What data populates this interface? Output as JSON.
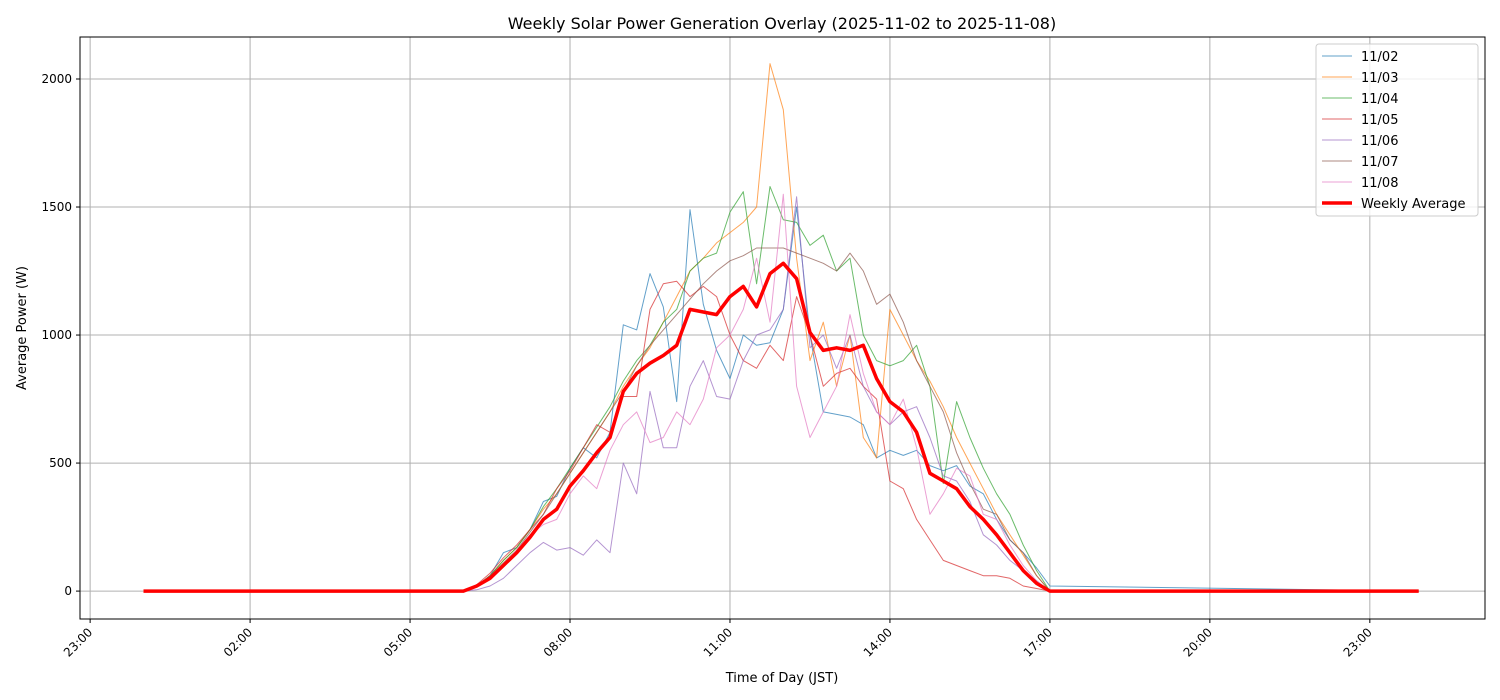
{
  "chart_data": {
    "type": "line",
    "title": "Weekly Solar Power Generation Overlay (2025-11-02 to 2025-11-08)",
    "xlabel": "Time of Day (JST)",
    "ylabel": "Average Power (W)",
    "grid": true,
    "legend_position": "top-right",
    "xlim_hours": [
      -1.19,
      25.16
    ],
    "ylim": [
      -109,
      2164
    ],
    "xticks_hours": [
      -1,
      2,
      5,
      8,
      11,
      14,
      17,
      20,
      23
    ],
    "xtick_labels": [
      "23:00",
      "02:00",
      "05:00",
      "08:00",
      "11:00",
      "14:00",
      "17:00",
      "20:00",
      "23:00"
    ],
    "yticks": [
      0,
      500,
      1000,
      1500,
      2000
    ],
    "ytick_labels": [
      "0",
      "500",
      "1000",
      "1500",
      "2000"
    ],
    "x": [
      "00:00",
      "06:00",
      "06:15",
      "06:30",
      "06:45",
      "07:00",
      "07:15",
      "07:30",
      "07:45",
      "08:00",
      "08:15",
      "08:30",
      "08:45",
      "09:00",
      "09:15",
      "09:30",
      "09:45",
      "10:00",
      "10:15",
      "10:30",
      "10:45",
      "11:00",
      "11:15",
      "11:30",
      "11:45",
      "12:00",
      "12:15",
      "12:30",
      "12:45",
      "13:00",
      "13:15",
      "13:30",
      "13:45",
      "14:00",
      "14:15",
      "14:30",
      "14:45",
      "15:00",
      "15:15",
      "15:30",
      "15:45",
      "16:00",
      "16:15",
      "16:30",
      "16:45",
      "17:00",
      "23:55"
    ],
    "series": [
      {
        "name": "11/02",
        "color": "#1f77b4",
        "values": [
          0,
          0,
          20,
          60,
          150,
          170,
          240,
          350,
          370,
          480,
          560,
          520,
          620,
          1040,
          1020,
          1240,
          1110,
          740,
          1490,
          1120,
          940,
          830,
          1000,
          960,
          970,
          1100,
          1500,
          1000,
          700,
          690,
          680,
          650,
          520,
          550,
          530,
          550,
          490,
          470,
          490,
          410,
          380,
          280,
          200,
          150,
          90,
          20,
          0
        ]
      },
      {
        "name": "11/03",
        "color": "#ff7f0e",
        "values": [
          0,
          0,
          20,
          60,
          120,
          170,
          240,
          320,
          380,
          460,
          540,
          620,
          700,
          800,
          880,
          950,
          1050,
          1150,
          1250,
          1300,
          1360,
          1400,
          1440,
          1500,
          2060,
          1880,
          1300,
          900,
          1050,
          800,
          1000,
          600,
          520,
          1100,
          1000,
          900,
          820,
          720,
          600,
          500,
          400,
          300,
          220,
          140,
          60,
          0,
          0
        ]
      },
      {
        "name": "11/04",
        "color": "#2ca02c",
        "values": [
          0,
          0,
          20,
          60,
          120,
          170,
          240,
          330,
          400,
          480,
          560,
          640,
          720,
          820,
          900,
          960,
          1050,
          1100,
          1250,
          1300,
          1320,
          1480,
          1560,
          1200,
          1580,
          1450,
          1440,
          1350,
          1390,
          1250,
          1300,
          1000,
          900,
          880,
          900,
          960,
          800,
          420,
          740,
          600,
          480,
          380,
          300,
          180,
          80,
          0,
          0
        ]
      },
      {
        "name": "11/05",
        "color": "#d62728",
        "values": [
          0,
          0,
          25,
          70,
          130,
          180,
          240,
          300,
          400,
          470,
          560,
          650,
          620,
          760,
          760,
          1100,
          1200,
          1210,
          1150,
          1190,
          1150,
          1000,
          900,
          870,
          960,
          900,
          1150,
          1000,
          800,
          850,
          870,
          800,
          750,
          430,
          400,
          280,
          200,
          120,
          100,
          80,
          60,
          60,
          50,
          20,
          10,
          0,
          0
        ]
      },
      {
        "name": "11/06",
        "color": "#9467bd",
        "values": [
          0,
          0,
          5,
          20,
          50,
          100,
          150,
          190,
          160,
          170,
          140,
          200,
          150,
          500,
          380,
          780,
          560,
          560,
          800,
          900,
          760,
          750,
          900,
          1000,
          1020,
          1100,
          1540,
          950,
          1000,
          870,
          1000,
          800,
          700,
          650,
          700,
          720,
          600,
          450,
          430,
          350,
          220,
          180,
          120,
          80,
          40,
          0,
          0
        ]
      },
      {
        "name": "11/07",
        "color": "#8c564b",
        "values": [
          0,
          0,
          20,
          60,
          110,
          160,
          230,
          300,
          380,
          460,
          540,
          620,
          700,
          780,
          880,
          960,
          1020,
          1080,
          1140,
          1200,
          1250,
          1290,
          1310,
          1340,
          1340,
          1340,
          1320,
          1300,
          1280,
          1250,
          1320,
          1250,
          1120,
          1160,
          1050,
          900,
          800,
          700,
          540,
          420,
          320,
          300,
          200,
          150,
          60,
          0,
          0
        ]
      },
      {
        "name": "11/08",
        "color": "#e377c2",
        "values": [
          0,
          0,
          15,
          50,
          100,
          160,
          220,
          260,
          280,
          380,
          450,
          400,
          550,
          650,
          700,
          580,
          600,
          700,
          650,
          750,
          950,
          1000,
          1100,
          1300,
          1050,
          1550,
          800,
          600,
          700,
          800,
          1080,
          850,
          700,
          650,
          750,
          560,
          300,
          380,
          480,
          450,
          300,
          280,
          180,
          100,
          40,
          0,
          0
        ]
      },
      {
        "name": "Weekly Average",
        "color": "#ff0000",
        "values": [
          0,
          0,
          20,
          50,
          100,
          150,
          210,
          280,
          320,
          410,
          470,
          540,
          600,
          780,
          850,
          890,
          920,
          960,
          1100,
          1090,
          1080,
          1150,
          1190,
          1110,
          1240,
          1280,
          1220,
          1010,
          940,
          950,
          940,
          960,
          830,
          740,
          700,
          620,
          460,
          430,
          400,
          330,
          280,
          220,
          150,
          80,
          30,
          0,
          0
        ]
      }
    ]
  }
}
